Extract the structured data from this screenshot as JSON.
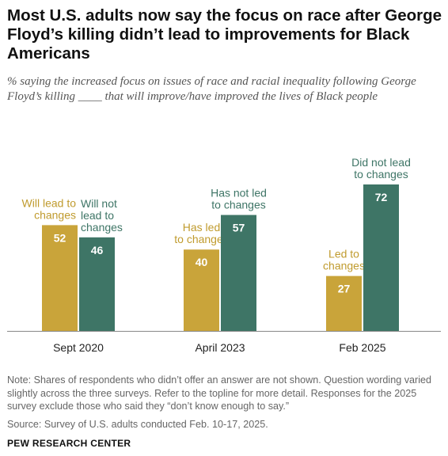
{
  "header": {
    "title": "Most U.S. adults now say the focus on race after George Floyd’s killing didn’t lead to improvements for Black Americans",
    "subtitle": "% saying the increased focus on issues of race and racial inequality following George Floyd’s killing ____ that will improve/have improved the lives of Black people"
  },
  "chart_data": {
    "type": "bar",
    "title": "",
    "xlabel": "",
    "ylabel": "",
    "ylim": [
      0,
      72
    ],
    "grid": false,
    "legend": "none",
    "categories": [
      "Sept 2020",
      "April 2023",
      "Feb 2025"
    ],
    "groups": [
      {
        "category": "Sept 2020",
        "bars": [
          {
            "value": 52,
            "label": "Will lead to\nchanges",
            "color": "#C9A43A",
            "label_side": "left"
          },
          {
            "value": 46,
            "label": "Will not\nlead to\nchanges",
            "color": "#3E7566",
            "label_side": "right"
          }
        ]
      },
      {
        "category": "April 2023",
        "bars": [
          {
            "value": 40,
            "label": "Has led\nto changes",
            "color": "#C9A43A",
            "label_side": "center"
          },
          {
            "value": 57,
            "label": "Has not led\nto changes",
            "color": "#3E7566",
            "label_side": "center"
          }
        ]
      },
      {
        "category": "Feb 2025",
        "bars": [
          {
            "value": 27,
            "label": "Led to\nchanges",
            "color": "#C9A43A",
            "label_side": "center"
          },
          {
            "value": 72,
            "label": "Did not lead\nto changes",
            "color": "#3E7566",
            "label_side": "center"
          }
        ]
      }
    ]
  },
  "colors": {
    "positive": "#C9A43A",
    "negative": "#3E7566",
    "positive_label": "#C09B2E",
    "negative_label": "#3E7566",
    "axis": "#888888"
  },
  "footer": {
    "note": "Note: Shares of respondents who didn’t offer an answer are not shown. Question wording varied slightly across the three surveys. Refer to the topline for more detail. Responses for the 2025 survey exclude those who said they “don’t know enough to say.”",
    "source": "Source: Survey of U.S. adults conducted Feb. 10-17, 2025.",
    "org": "PEW RESEARCH CENTER"
  }
}
